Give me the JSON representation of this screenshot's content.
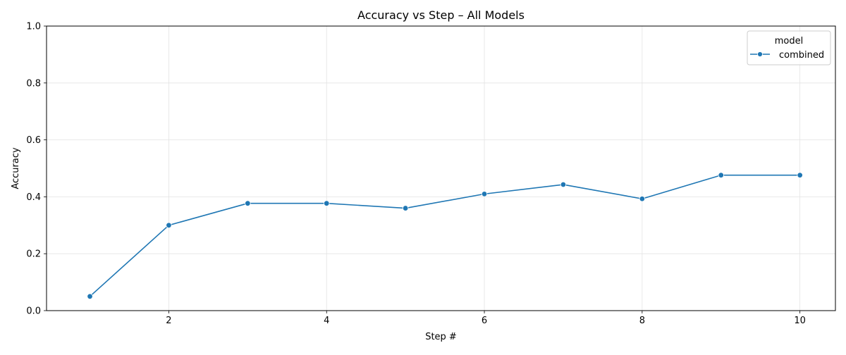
{
  "chart_data": {
    "type": "line",
    "title": "Accuracy vs Step – All Models",
    "xlabel": "Step #",
    "ylabel": "Accuracy",
    "xlim": [
      0.45,
      10.45
    ],
    "ylim": [
      0.0,
      1.0
    ],
    "xticks": [
      2,
      4,
      6,
      8,
      10
    ],
    "yticks": [
      0.0,
      0.2,
      0.4,
      0.6,
      0.8,
      1.0
    ],
    "xtick_labels": [
      "2",
      "4",
      "6",
      "8",
      "10"
    ],
    "ytick_labels": [
      "0.0",
      "0.2",
      "0.4",
      "0.6",
      "0.8",
      "1.0"
    ],
    "grid": true,
    "legend": {
      "title": "model",
      "position": "top-right"
    },
    "x": [
      1,
      2,
      3,
      4,
      5,
      6,
      7,
      8,
      9,
      10
    ],
    "series": [
      {
        "name": "combined",
        "color": "#1f77b4",
        "marker": "circle",
        "values": [
          0.05,
          0.3,
          0.377,
          0.377,
          0.36,
          0.41,
          0.443,
          0.393,
          0.476,
          0.476
        ]
      }
    ]
  }
}
